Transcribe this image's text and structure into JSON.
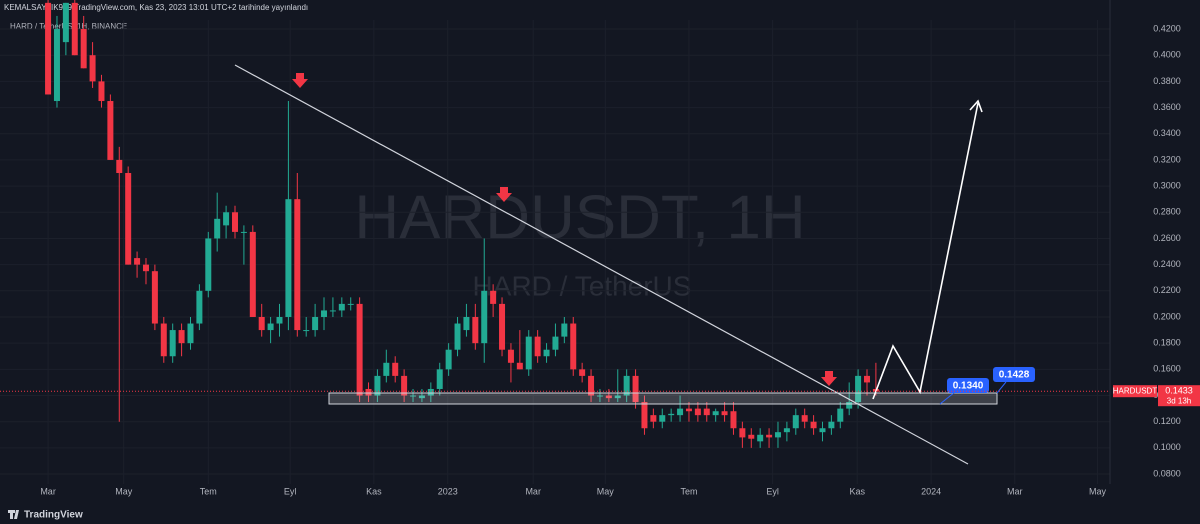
{
  "header": {
    "publisher": "KEMALSAYLIK979 TradingView.com, Kas 23, 2023 13:01 UTC+2 tarihinde yayınlandı",
    "symbol": "HARD / TetherUS, 1H, BINANCE"
  },
  "chart_data": {
    "type": "candlestick",
    "watermark_title": "HARDUSDT, 1H",
    "watermark_subtitle": "HARD / TetherUS",
    "up_color": "#22ab94",
    "down_color": "#f23645",
    "open": [
      0.44,
      0.365,
      0.41,
      0.44,
      0.42,
      0.4,
      0.38,
      0.365,
      0.32,
      0.31,
      0.245,
      0.24,
      0.235,
      0.195,
      0.17,
      0.19,
      0.18,
      0.195,
      0.22,
      0.26,
      0.27,
      0.28,
      0.265,
      0.265,
      0.2,
      0.19,
      0.195,
      0.2,
      0.29,
      0.19,
      0.19,
      0.2,
      0.205,
      0.205,
      0.21,
      0.21,
      0.145,
      0.14,
      0.155,
      0.165,
      0.155,
      0.14,
      0.138,
      0.14,
      0.145,
      0.16,
      0.175,
      0.19,
      0.2,
      0.18,
      0.22,
      0.21,
      0.175,
      0.165,
      0.16,
      0.185,
      0.17,
      0.175,
      0.185,
      0.195,
      0.16,
      0.155,
      0.14,
      0.14,
      0.138,
      0.14,
      0.155,
      0.135,
      0.125,
      0.12,
      0.125,
      0.125,
      0.13,
      0.13,
      0.13,
      0.125,
      0.128,
      0.128,
      0.115,
      0.11,
      0.105,
      0.11,
      0.108,
      0.112,
      0.115,
      0.125,
      0.12,
      0.112,
      0.115,
      0.12,
      0.13,
      0.135,
      0.155,
      0.145
    ],
    "high": [
      0.445,
      0.43,
      0.44,
      0.445,
      0.43,
      0.41,
      0.385,
      0.37,
      0.33,
      0.315,
      0.25,
      0.245,
      0.24,
      0.2,
      0.195,
      0.195,
      0.2,
      0.225,
      0.265,
      0.295,
      0.285,
      0.285,
      0.27,
      0.27,
      0.21,
      0.2,
      0.21,
      0.365,
      0.31,
      0.2,
      0.21,
      0.215,
      0.215,
      0.215,
      0.215,
      0.215,
      0.15,
      0.16,
      0.175,
      0.17,
      0.16,
      0.145,
      0.145,
      0.15,
      0.165,
      0.18,
      0.2,
      0.21,
      0.21,
      0.26,
      0.225,
      0.215,
      0.18,
      0.19,
      0.19,
      0.19,
      0.18,
      0.195,
      0.2,
      0.2,
      0.165,
      0.16,
      0.145,
      0.145,
      0.16,
      0.16,
      0.16,
      0.14,
      0.13,
      0.13,
      0.13,
      0.14,
      0.135,
      0.135,
      0.135,
      0.13,
      0.135,
      0.135,
      0.12,
      0.115,
      0.115,
      0.115,
      0.12,
      0.12,
      0.13,
      0.13,
      0.125,
      0.12,
      0.125,
      0.135,
      0.15,
      0.16,
      0.16,
      0.165
    ],
    "low": [
      0.37,
      0.36,
      0.4,
      0.4,
      0.39,
      0.375,
      0.36,
      0.32,
      0.12,
      0.24,
      0.23,
      0.225,
      0.19,
      0.165,
      0.165,
      0.17,
      0.175,
      0.19,
      0.215,
      0.25,
      0.26,
      0.26,
      0.24,
      0.2,
      0.185,
      0.18,
      0.185,
      0.19,
      0.185,
      0.185,
      0.185,
      0.19,
      0.2,
      0.2,
      0.205,
      0.135,
      0.135,
      0.135,
      0.15,
      0.15,
      0.135,
      0.135,
      0.135,
      0.135,
      0.14,
      0.155,
      0.17,
      0.185,
      0.175,
      0.165,
      0.2,
      0.17,
      0.15,
      0.16,
      0.155,
      0.165,
      0.165,
      0.17,
      0.18,
      0.155,
      0.15,
      0.135,
      0.135,
      0.135,
      0.135,
      0.135,
      0.13,
      0.11,
      0.115,
      0.115,
      0.12,
      0.12,
      0.12,
      0.12,
      0.12,
      0.12,
      0.12,
      0.11,
      0.1,
      0.1,
      0.1,
      0.1,
      0.1,
      0.105,
      0.11,
      0.115,
      0.11,
      0.105,
      0.11,
      0.115,
      0.125,
      0.13,
      0.14,
      0.14
    ],
    "close": [
      0.37,
      0.42,
      0.44,
      0.4,
      0.39,
      0.38,
      0.365,
      0.32,
      0.31,
      0.24,
      0.24,
      0.235,
      0.195,
      0.17,
      0.19,
      0.18,
      0.195,
      0.22,
      0.26,
      0.275,
      0.28,
      0.265,
      0.265,
      0.2,
      0.19,
      0.195,
      0.2,
      0.29,
      0.19,
      0.19,
      0.2,
      0.205,
      0.205,
      0.21,
      0.21,
      0.14,
      0.14,
      0.155,
      0.165,
      0.155,
      0.14,
      0.14,
      0.14,
      0.145,
      0.16,
      0.175,
      0.195,
      0.2,
      0.18,
      0.22,
      0.21,
      0.175,
      0.165,
      0.16,
      0.185,
      0.17,
      0.175,
      0.185,
      0.195,
      0.16,
      0.155,
      0.14,
      0.14,
      0.138,
      0.14,
      0.155,
      0.135,
      0.115,
      0.12,
      0.125,
      0.126,
      0.13,
      0.128,
      0.125,
      0.125,
      0.128,
      0.125,
      0.115,
      0.108,
      0.107,
      0.11,
      0.108,
      0.112,
      0.115,
      0.125,
      0.12,
      0.115,
      0.115,
      0.12,
      0.13,
      0.135,
      0.155,
      0.15,
      0.143
    ],
    "xlim": [
      -5.4,
      119.3
    ],
    "xticks": [
      {
        "value": 0,
        "label": "Mar"
      },
      {
        "value": 8.5,
        "label": "May"
      },
      {
        "value": 18,
        "label": "Tem"
      },
      {
        "value": 27.2,
        "label": "Eyl"
      },
      {
        "value": 36.6,
        "label": "Kas"
      },
      {
        "value": 44.9,
        "label": "2023"
      },
      {
        "value": 54.5,
        "label": "Mar"
      },
      {
        "value": 62.6,
        "label": "May"
      },
      {
        "value": 72,
        "label": "Tem"
      },
      {
        "value": 81.4,
        "label": "Eyl"
      },
      {
        "value": 90.9,
        "label": "Kas"
      },
      {
        "value": 99.2,
        "label": "2024"
      },
      {
        "value": 108.6,
        "label": "Mar"
      },
      {
        "value": 117.9,
        "label": "May"
      }
    ],
    "ylim": [
      0.0724,
      0.4269
    ],
    "yticks": [
      {
        "value": 0.42,
        "label": "0.4200"
      },
      {
        "value": 0.4,
        "label": "0.4000"
      },
      {
        "value": 0.38,
        "label": "0.3800"
      },
      {
        "value": 0.36,
        "label": "0.3600"
      },
      {
        "value": 0.34,
        "label": "0.3400"
      },
      {
        "value": 0.32,
        "label": "0.3200"
      },
      {
        "value": 0.3,
        "label": "0.3000"
      },
      {
        "value": 0.28,
        "label": "0.2800"
      },
      {
        "value": 0.26,
        "label": "0.2600"
      },
      {
        "value": 0.24,
        "label": "0.2400"
      },
      {
        "value": 0.22,
        "label": "0.2200"
      },
      {
        "value": 0.2,
        "label": "0.2000"
      },
      {
        "value": 0.18,
        "label": "0.1800"
      },
      {
        "value": 0.16,
        "label": "0.1600"
      },
      {
        "value": 0.14,
        "label": "0.1400"
      },
      {
        "value": 0.12,
        "label": "0.1200"
      },
      {
        "value": 0.1,
        "label": "0.1000"
      },
      {
        "value": 0.08,
        "label": "0.0800"
      }
    ],
    "last_price": {
      "symbol": "HARDUSDT",
      "value": 0.1433,
      "countdown": "3d 13h"
    },
    "annotations": [
      "0.1340",
      "0.1428"
    ]
  },
  "footer": {
    "brand": "TradingView"
  }
}
